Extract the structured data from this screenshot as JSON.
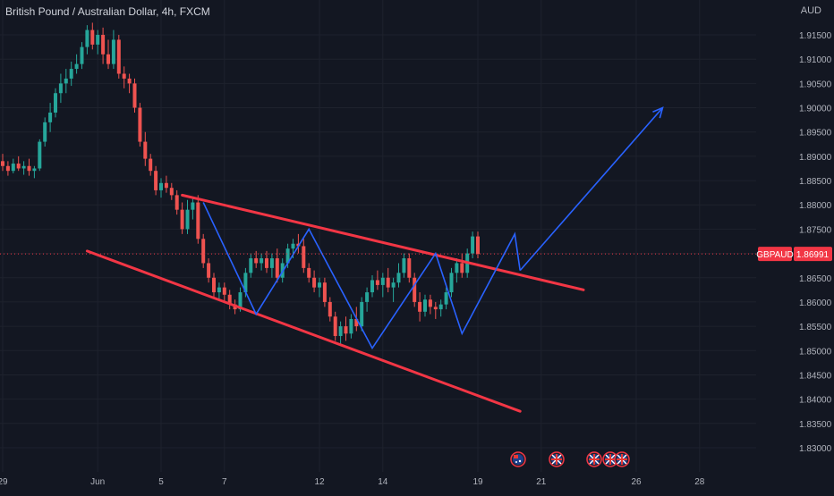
{
  "header": {
    "title": "British Pound / Australian Dollar, 4h, FXCM",
    "currency": "AUD"
  },
  "price_tag": {
    "symbol": "GBPAUD",
    "price": "1.86991",
    "color": "#f23645"
  },
  "colors": {
    "background": "#131722",
    "up": "#26a69a",
    "down": "#ef5350",
    "channel": "#f23645",
    "path": "#2962ff",
    "grid": "#1e222d",
    "text": "#b2b5be"
  },
  "event_icons": [
    "australia-flag-icon",
    "uk-flag-icon",
    "uk-flag-icon",
    "uk-flag-icon",
    "uk-flag-icon"
  ],
  "chart_data": {
    "type": "candlestick",
    "title": "British Pound / Australian Dollar, 4h, FXCM",
    "ylabel": "AUD",
    "ylim": [
      1.8265,
      1.9185
    ],
    "grid": true,
    "y_ticks": [
      "1.91500",
      "1.91000",
      "1.90500",
      "1.90000",
      "1.89500",
      "1.89000",
      "1.88500",
      "1.88000",
      "1.87500",
      "1.87000",
      "1.86500",
      "1.86000",
      "1.85500",
      "1.85000",
      "1.84500",
      "1.84000",
      "1.83500",
      "1.83000"
    ],
    "x_ticks": [
      {
        "label": "29",
        "bar": 0
      },
      {
        "label": "Jun",
        "bar": 18
      },
      {
        "label": "5",
        "bar": 30
      },
      {
        "label": "7",
        "bar": 42
      },
      {
        "label": "12",
        "bar": 60
      },
      {
        "label": "14",
        "bar": 72
      },
      {
        "label": "19",
        "bar": 90
      },
      {
        "label": "21",
        "bar": 102
      },
      {
        "label": "26",
        "bar": 120
      },
      {
        "label": "28",
        "bar": 132
      }
    ],
    "candles": [
      [
        1.889,
        1.8905,
        1.887,
        1.888
      ],
      [
        1.888,
        1.889,
        1.886,
        1.887
      ],
      [
        1.887,
        1.8895,
        1.8865,
        1.8885
      ],
      [
        1.8885,
        1.89,
        1.887,
        1.8875
      ],
      [
        1.8875,
        1.889,
        1.8862,
        1.888
      ],
      [
        1.888,
        1.8895,
        1.886,
        1.887
      ],
      [
        1.887,
        1.888,
        1.8855,
        1.8875
      ],
      [
        1.8875,
        1.8935,
        1.887,
        1.893
      ],
      [
        1.893,
        1.898,
        1.892,
        1.897
      ],
      [
        1.897,
        1.901,
        1.895,
        1.899
      ],
      [
        1.899,
        1.904,
        1.898,
        1.903
      ],
      [
        1.903,
        1.907,
        1.901,
        1.905
      ],
      [
        1.905,
        1.908,
        1.903,
        1.906
      ],
      [
        1.906,
        1.9095,
        1.9045,
        1.908
      ],
      [
        1.908,
        1.911,
        1.907,
        1.909
      ],
      [
        1.909,
        1.9135,
        1.908,
        1.9125
      ],
      [
        1.9125,
        1.917,
        1.911,
        1.916
      ],
      [
        1.916,
        1.9175,
        1.912,
        1.913
      ],
      [
        1.913,
        1.916,
        1.911,
        1.915
      ],
      [
        1.915,
        1.9165,
        1.909,
        1.911
      ],
      [
        1.911,
        1.914,
        1.908,
        1.909
      ],
      [
        1.909,
        1.916,
        1.908,
        1.914
      ],
      [
        1.914,
        1.915,
        1.906,
        1.907
      ],
      [
        1.907,
        1.9085,
        1.904,
        1.906
      ],
      [
        1.906,
        1.907,
        1.903,
        1.905
      ],
      [
        1.905,
        1.906,
        1.899,
        1.9
      ],
      [
        1.9,
        1.901,
        1.892,
        1.893
      ],
      [
        1.893,
        1.895,
        1.888,
        1.8895
      ],
      [
        1.8895,
        1.8905,
        1.886,
        1.887
      ],
      [
        1.887,
        1.888,
        1.882,
        1.883
      ],
      [
        1.883,
        1.8855,
        1.8815,
        1.8845
      ],
      [
        1.8845,
        1.886,
        1.8825,
        1.8835
      ],
      [
        1.8835,
        1.8845,
        1.881,
        1.882
      ],
      [
        1.882,
        1.883,
        1.878,
        1.879
      ],
      [
        1.879,
        1.8805,
        1.874,
        1.875
      ],
      [
        1.875,
        1.881,
        1.874,
        1.879
      ],
      [
        1.879,
        1.8815,
        1.877,
        1.8805
      ],
      [
        1.8805,
        1.882,
        1.872,
        1.873
      ],
      [
        1.873,
        1.874,
        1.867,
        1.868
      ],
      [
        1.868,
        1.869,
        1.864,
        1.865
      ],
      [
        1.865,
        1.866,
        1.861,
        1.862
      ],
      [
        1.862,
        1.864,
        1.8605,
        1.863
      ],
      [
        1.863,
        1.864,
        1.86,
        1.8615
      ],
      [
        1.8615,
        1.8625,
        1.8585,
        1.8595
      ],
      [
        1.8595,
        1.8605,
        1.8575,
        1.8585
      ],
      [
        1.8585,
        1.863,
        1.858,
        1.862
      ],
      [
        1.862,
        1.867,
        1.861,
        1.866
      ],
      [
        1.866,
        1.87,
        1.865,
        1.869
      ],
      [
        1.869,
        1.8705,
        1.867,
        1.868
      ],
      [
        1.868,
        1.87,
        1.8665,
        1.869
      ],
      [
        1.869,
        1.8705,
        1.866,
        1.867
      ],
      [
        1.867,
        1.87,
        1.865,
        1.869
      ],
      [
        1.869,
        1.871,
        1.864,
        1.865
      ],
      [
        1.865,
        1.869,
        1.864,
        1.868
      ],
      [
        1.868,
        1.872,
        1.867,
        1.871
      ],
      [
        1.871,
        1.873,
        1.869,
        1.872
      ],
      [
        1.872,
        1.874,
        1.87,
        1.8715
      ],
      [
        1.8715,
        1.873,
        1.866,
        1.867
      ],
      [
        1.867,
        1.868,
        1.864,
        1.865
      ],
      [
        1.865,
        1.8665,
        1.862,
        1.863
      ],
      [
        1.863,
        1.865,
        1.861,
        1.864
      ],
      [
        1.864,
        1.865,
        1.859,
        1.86
      ],
      [
        1.86,
        1.861,
        1.856,
        1.857
      ],
      [
        1.857,
        1.858,
        1.852,
        1.853
      ],
      [
        1.853,
        1.856,
        1.851,
        1.855
      ],
      [
        1.855,
        1.857,
        1.852,
        1.8535
      ],
      [
        1.8535,
        1.8575,
        1.8525,
        1.8565
      ],
      [
        1.8565,
        1.859,
        1.854,
        1.855
      ],
      [
        1.855,
        1.861,
        1.854,
        1.86
      ],
      [
        1.86,
        1.863,
        1.858,
        1.862
      ],
      [
        1.862,
        1.8655,
        1.861,
        1.8645
      ],
      [
        1.8645,
        1.8665,
        1.8625,
        1.8635
      ],
      [
        1.8635,
        1.866,
        1.861,
        1.865
      ],
      [
        1.865,
        1.867,
        1.862,
        1.863
      ],
      [
        1.863,
        1.865,
        1.86,
        1.864
      ],
      [
        1.864,
        1.868,
        1.863,
        1.866
      ],
      [
        1.866,
        1.87,
        1.865,
        1.869
      ],
      [
        1.869,
        1.87,
        1.864,
        1.865
      ],
      [
        1.865,
        1.866,
        1.859,
        1.86
      ],
      [
        1.86,
        1.862,
        1.856,
        1.858
      ],
      [
        1.858,
        1.8615,
        1.857,
        1.8605
      ],
      [
        1.8605,
        1.8615,
        1.8575,
        1.859
      ],
      [
        1.859,
        1.86,
        1.8565,
        1.8585
      ],
      [
        1.8585,
        1.8605,
        1.857,
        1.8595
      ],
      [
        1.8595,
        1.863,
        1.8585,
        1.862
      ],
      [
        1.862,
        1.867,
        1.861,
        1.866
      ],
      [
        1.866,
        1.869,
        1.864,
        1.868
      ],
      [
        1.868,
        1.87,
        1.865,
        1.866
      ],
      [
        1.866,
        1.871,
        1.865,
        1.87
      ],
      [
        1.87,
        1.8745,
        1.869,
        1.8735
      ],
      [
        1.8735,
        1.8745,
        1.869,
        1.8699
      ]
    ],
    "annotations": {
      "channel_upper": [
        [
          34,
          1.882
        ],
        [
          110,
          1.8625
        ]
      ],
      "channel_lower": [
        [
          16,
          1.8705
        ],
        [
          98,
          1.8375
        ]
      ],
      "zigzag": [
        [
          38,
          1.8805
        ],
        [
          48,
          1.8575
        ],
        [
          58,
          1.875
        ],
        [
          70,
          1.8505
        ],
        [
          82,
          1.87
        ],
        [
          87,
          1.8535
        ],
        [
          97,
          1.874
        ],
        [
          98,
          1.8665
        ]
      ],
      "projection": {
        "from": [
          98,
          1.8665
        ],
        "to": [
          125,
          1.9
        ]
      }
    }
  }
}
